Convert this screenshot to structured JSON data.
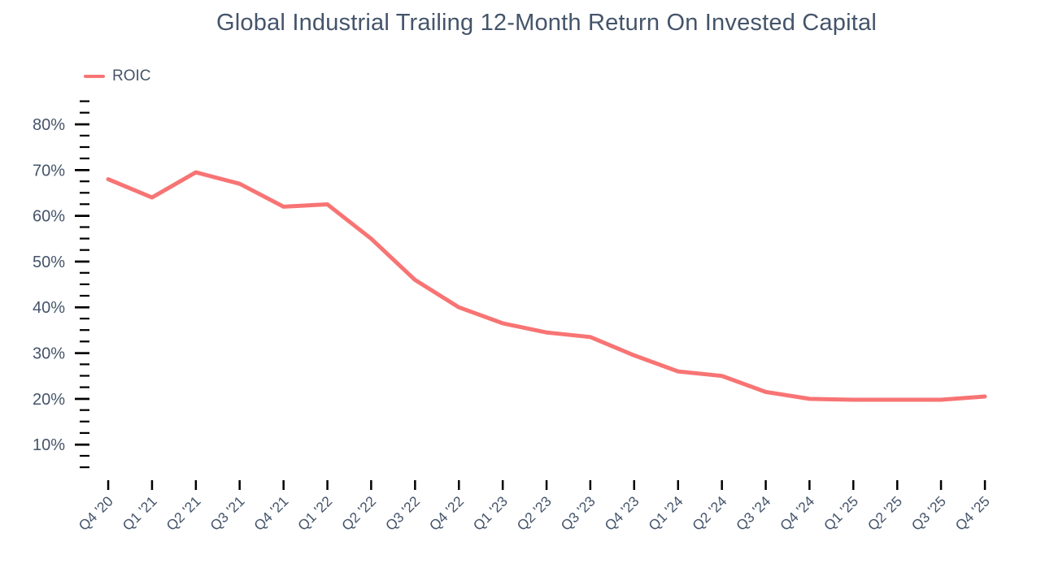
{
  "header": {
    "title": "Global Industrial Trailing 12-Month Return On Invested Capital"
  },
  "colors": {
    "series_line": "#f87474",
    "axis_text": "#44546a",
    "tick_mark": "#000000",
    "background": "#ffffff"
  },
  "chart_data": {
    "type": "line",
    "title": "Global Industrial Trailing 12-Month Return On Invested Capital",
    "categories": [
      "Q4 '20",
      "Q1 '21",
      "Q2 '21",
      "Q3 '21",
      "Q4 '21",
      "Q1 '22",
      "Q2 '22",
      "Q3 '22",
      "Q4 '22",
      "Q1 '23",
      "Q2 '23",
      "Q3 '23",
      "Q4 '23",
      "Q1 '24",
      "Q2 '24",
      "Q3 '24",
      "Q4 '24",
      "Q1 '25",
      "Q2 '25",
      "Q3 '25",
      "Q4 '25"
    ],
    "series": [
      {
        "name": "ROIC",
        "color": "#f87474",
        "values": [
          68,
          64,
          69.5,
          67,
          62,
          62.5,
          55,
          46,
          40,
          36.5,
          34.5,
          33.5,
          29.5,
          26,
          25,
          21.5,
          20,
          19.8,
          19.8,
          19.8,
          20.5
        ]
      }
    ],
    "xlabel": "",
    "ylabel": "",
    "y_axis": {
      "unit": "%",
      "min": 5,
      "max": 85,
      "major_step": 10,
      "minor_step": 2.5,
      "major_tick_labels": [
        "10%",
        "20%",
        "30%",
        "40%",
        "50%",
        "60%",
        "70%",
        "80%"
      ]
    },
    "x_axis": {
      "tick_label_rotation_deg": -45
    },
    "grid": false,
    "legend_position": "top-left"
  }
}
